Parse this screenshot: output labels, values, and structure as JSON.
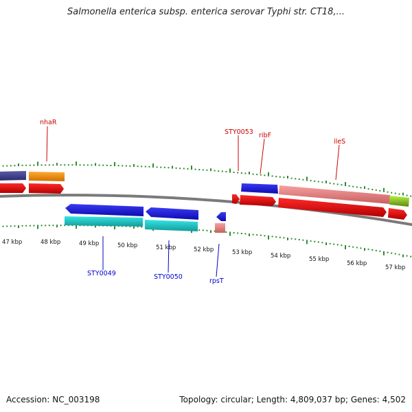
{
  "title": "Salmonella enterica subsp. enterica serovar Typhi str. CT18,...",
  "footer": {
    "accession": "Accession: NC_003198",
    "stats": "Topology: circular; Length: 4,809,037 bp; Genes: 4,502"
  },
  "scale_labels": [
    "47 kbp",
    "48 kbp",
    "49 kbp",
    "50 kbp",
    "51 kbp",
    "52 kbp",
    "53 kbp",
    "54 kbp",
    "55 kbp",
    "56 kbp",
    "57 kbp"
  ],
  "gene_labels_top": [
    "nhaR",
    "STY0053",
    "ribF",
    "ileS"
  ],
  "gene_labels_bottom": [
    "STY0049",
    "STY0050",
    "rpsT"
  ],
  "colors": {
    "label_top": "#cc0000",
    "label_bottom": "#0000cc",
    "backbone": "#7a7a7a",
    "tick": "#2e8b2e",
    "blue": "#1a1adc",
    "cyan": "#22d3d3",
    "red": "#ee1111",
    "pink": "#f08a8a",
    "orange": "#ff9922",
    "purple": "#4a4a9a",
    "lime": "#9add22"
  }
}
